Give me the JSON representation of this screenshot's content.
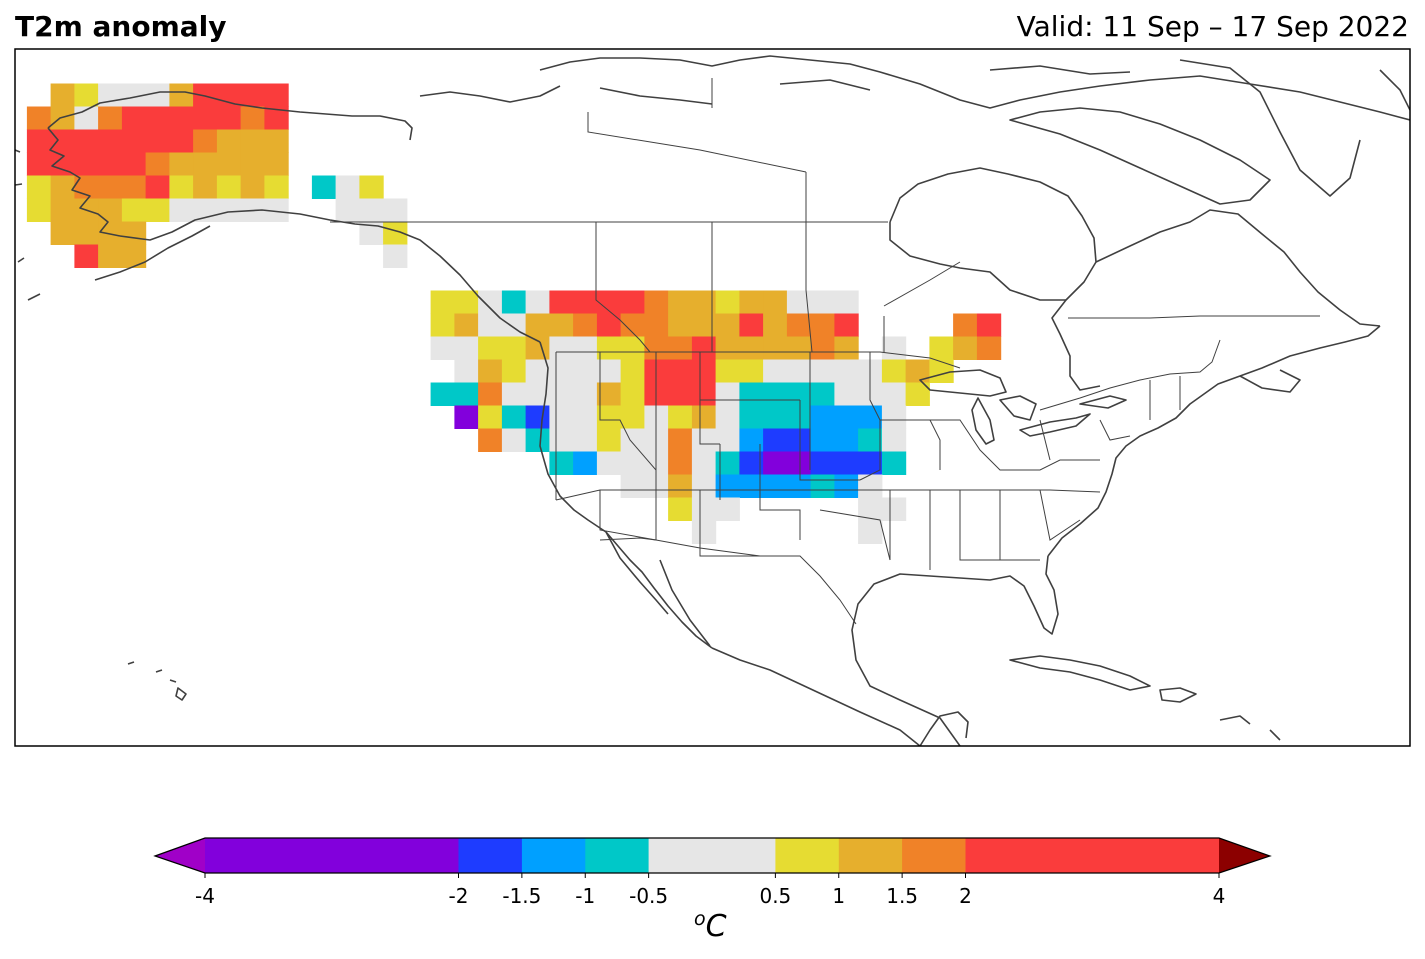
{
  "header": {
    "title": "T2m anomaly",
    "valid": "Valid: 11 Sep – 17 Sep 2022"
  },
  "legend": {
    "unit_prefix": "o",
    "unit": "C",
    "levels": [
      -4,
      -2,
      -1.5,
      -1,
      -0.5,
      0.5,
      1,
      1.5,
      2,
      4
    ],
    "labels": [
      "-4",
      "-2",
      "-1.5",
      "-1",
      "-0.5",
      "0.5",
      "1",
      "1.5",
      "2",
      "4"
    ],
    "colors": [
      "#8200dc",
      "#1e3cff",
      "#00a0ff",
      "#00c8c8",
      "#e6e6e6",
      "#e6dc32",
      "#e6af2d",
      "#f08228",
      "#fa3c3c"
    ],
    "under_color": "#a000c8",
    "over_color": "#8c0000"
  },
  "chart_data": {
    "type": "heatmap",
    "description_units": "temperature anomaly in degrees C, 2.5-degree grid cells",
    "cells": [
      {
        "lat": 70,
        "lon": -165,
        "v": 1.2
      },
      {
        "lat": 70,
        "lon": -162.5,
        "v": 0.7
      },
      {
        "lat": 70,
        "lon": -160,
        "v": 0
      },
      {
        "lat": 70,
        "lon": -157.5,
        "v": 0
      },
      {
        "lat": 70,
        "lon": -155,
        "v": 0
      },
      {
        "lat": 70,
        "lon": -152.5,
        "v": 1.2
      },
      {
        "lat": 70,
        "lon": -150,
        "v": 2.5
      },
      {
        "lat": 70,
        "lon": -147.5,
        "v": 2.5
      },
      {
        "lat": 70,
        "lon": -145,
        "v": 2.5
      },
      {
        "lat": 70,
        "lon": -142.5,
        "v": 2.5
      },
      {
        "lat": 67.5,
        "lon": -167.5,
        "v": 1.7
      },
      {
        "lat": 67.5,
        "lon": -165,
        "v": 1.2
      },
      {
        "lat": 67.5,
        "lon": -162.5,
        "v": 0
      },
      {
        "lat": 67.5,
        "lon": -160,
        "v": 1.7
      },
      {
        "lat": 67.5,
        "lon": -157.5,
        "v": 2.5
      },
      {
        "lat": 67.5,
        "lon": -155,
        "v": 2.5
      },
      {
        "lat": 67.5,
        "lon": -152.5,
        "v": 2.5
      },
      {
        "lat": 67.5,
        "lon": -150,
        "v": 2.5
      },
      {
        "lat": 67.5,
        "lon": -147.5,
        "v": 2.5
      },
      {
        "lat": 67.5,
        "lon": -145,
        "v": 1.7
      },
      {
        "lat": 67.5,
        "lon": -142.5,
        "v": 2.5
      },
      {
        "lat": 65,
        "lon": -167.5,
        "v": 2.5
      },
      {
        "lat": 65,
        "lon": -165,
        "v": 2.5
      },
      {
        "lat": 65,
        "lon": -162.5,
        "v": 2.5
      },
      {
        "lat": 65,
        "lon": -160,
        "v": 2.5
      },
      {
        "lat": 65,
        "lon": -157.5,
        "v": 2.5
      },
      {
        "lat": 65,
        "lon": -155,
        "v": 2.5
      },
      {
        "lat": 65,
        "lon": -152.5,
        "v": 2.5
      },
      {
        "lat": 65,
        "lon": -150,
        "v": 1.7
      },
      {
        "lat": 65,
        "lon": -147.5,
        "v": 1.2
      },
      {
        "lat": 65,
        "lon": -145,
        "v": 1.2
      },
      {
        "lat": 65,
        "lon": -142.5,
        "v": 1.2
      },
      {
        "lat": 62.5,
        "lon": -167.5,
        "v": 2.5
      },
      {
        "lat": 62.5,
        "lon": -165,
        "v": 2.5
      },
      {
        "lat": 62.5,
        "lon": -162.5,
        "v": 2.5
      },
      {
        "lat": 62.5,
        "lon": -160,
        "v": 2.5
      },
      {
        "lat": 62.5,
        "lon": -157.5,
        "v": 2.5
      },
      {
        "lat": 62.5,
        "lon": -155,
        "v": 1.7
      },
      {
        "lat": 62.5,
        "lon": -152.5,
        "v": 1.2
      },
      {
        "lat": 62.5,
        "lon": -150,
        "v": 1.2
      },
      {
        "lat": 62.5,
        "lon": -147.5,
        "v": 1.2
      },
      {
        "lat": 62.5,
        "lon": -145,
        "v": 1.2
      },
      {
        "lat": 62.5,
        "lon": -142.5,
        "v": 1.2
      },
      {
        "lat": 60,
        "lon": -167.5,
        "v": 0.7
      },
      {
        "lat": 60,
        "lon": -165,
        "v": 1.2
      },
      {
        "lat": 60,
        "lon": -162.5,
        "v": 1.7
      },
      {
        "lat": 60,
        "lon": -160,
        "v": 1.7
      },
      {
        "lat": 60,
        "lon": -157.5,
        "v": 1.7
      },
      {
        "lat": 60,
        "lon": -155,
        "v": 2.5
      },
      {
        "lat": 60,
        "lon": -152.5,
        "v": 0.7
      },
      {
        "lat": 60,
        "lon": -150,
        "v": 1.2
      },
      {
        "lat": 60,
        "lon": -147.5,
        "v": 0.7
      },
      {
        "lat": 60,
        "lon": -145,
        "v": 1.2
      },
      {
        "lat": 60,
        "lon": -142.5,
        "v": 0.7
      },
      {
        "lat": 57.5,
        "lon": -167.5,
        "v": 0.7
      },
      {
        "lat": 57.5,
        "lon": -165,
        "v": 1.2
      },
      {
        "lat": 57.5,
        "lon": -162.5,
        "v": 1.2
      },
      {
        "lat": 57.5,
        "lon": -160,
        "v": 1.2
      },
      {
        "lat": 57.5,
        "lon": -157.5,
        "v": 0.7
      },
      {
        "lat": 57.5,
        "lon": -155,
        "v": 0.7
      },
      {
        "lat": 57.5,
        "lon": -152.5,
        "v": 0
      },
      {
        "lat": 57.5,
        "lon": -150,
        "v": 0
      },
      {
        "lat": 57.5,
        "lon": -147.5,
        "v": 0
      },
      {
        "lat": 57.5,
        "lon": -145,
        "v": 0
      },
      {
        "lat": 57.5,
        "lon": -142.5,
        "v": 0
      },
      {
        "lat": 55,
        "lon": -165,
        "v": 1.2
      },
      {
        "lat": 55,
        "lon": -162.5,
        "v": 1.2
      },
      {
        "lat": 55,
        "lon": -160,
        "v": 1.2
      },
      {
        "lat": 55,
        "lon": -157.5,
        "v": 1.2
      },
      {
        "lat": 52.5,
        "lon": -162.5,
        "v": 2.5
      },
      {
        "lat": 52.5,
        "lon": -160,
        "v": 1.2
      },
      {
        "lat": 52.5,
        "lon": -157.5,
        "v": 1.2
      },
      {
        "lat": 60,
        "lon": -137.5,
        "v": -0.7
      },
      {
        "lat": 60,
        "lon": -135,
        "v": 0
      },
      {
        "lat": 60,
        "lon": -132.5,
        "v": 0.7
      },
      {
        "lat": 57.5,
        "lon": -135,
        "v": 0
      },
      {
        "lat": 57.5,
        "lon": -132.5,
        "v": 0
      },
      {
        "lat": 57.5,
        "lon": -130,
        "v": 0
      },
      {
        "lat": 55,
        "lon": -132.5,
        "v": 0
      },
      {
        "lat": 55,
        "lon": -130,
        "v": 0.7
      },
      {
        "lat": 52.5,
        "lon": -130,
        "v": 0
      },
      {
        "lat": 47.5,
        "lon": -125,
        "v": 0.7
      },
      {
        "lat": 47.5,
        "lon": -122.5,
        "v": 0.7
      },
      {
        "lat": 47.5,
        "lon": -120,
        "v": 0
      },
      {
        "lat": 47.5,
        "lon": -117.5,
        "v": -0.7
      },
      {
        "lat": 47.5,
        "lon": -115,
        "v": 0
      },
      {
        "lat": 47.5,
        "lon": -112.5,
        "v": 2.5
      },
      {
        "lat": 47.5,
        "lon": -110,
        "v": 2.5
      },
      {
        "lat": 47.5,
        "lon": -107.5,
        "v": 2.5
      },
      {
        "lat": 47.5,
        "lon": -105,
        "v": 2.5
      },
      {
        "lat": 47.5,
        "lon": -102.5,
        "v": 1.7
      },
      {
        "lat": 47.5,
        "lon": -100,
        "v": 1.2
      },
      {
        "lat": 47.5,
        "lon": -97.5,
        "v": 1.2
      },
      {
        "lat": 47.5,
        "lon": -95,
        "v": 0.7
      },
      {
        "lat": 47.5,
        "lon": -92.5,
        "v": 1.2
      },
      {
        "lat": 47.5,
        "lon": -90,
        "v": 1.2
      },
      {
        "lat": 47.5,
        "lon": -87.5,
        "v": 0
      },
      {
        "lat": 47.5,
        "lon": -85,
        "v": 0
      },
      {
        "lat": 47.5,
        "lon": -82.5,
        "v": 0
      },
      {
        "lat": 45,
        "lon": -125,
        "v": 0.7
      },
      {
        "lat": 45,
        "lon": -122.5,
        "v": 1.2
      },
      {
        "lat": 45,
        "lon": -120,
        "v": 0
      },
      {
        "lat": 45,
        "lon": -117.5,
        "v": 0
      },
      {
        "lat": 45,
        "lon": -115,
        "v": 1.2
      },
      {
        "lat": 45,
        "lon": -112.5,
        "v": 1.2
      },
      {
        "lat": 45,
        "lon": -110,
        "v": 1.7
      },
      {
        "lat": 45,
        "lon": -107.5,
        "v": 2.5
      },
      {
        "lat": 45,
        "lon": -105,
        "v": 1.7
      },
      {
        "lat": 45,
        "lon": -102.5,
        "v": 1.7
      },
      {
        "lat": 45,
        "lon": -100,
        "v": 1.2
      },
      {
        "lat": 45,
        "lon": -97.5,
        "v": 1.2
      },
      {
        "lat": 45,
        "lon": -95,
        "v": 1.2
      },
      {
        "lat": 45,
        "lon": -92.5,
        "v": 2.5
      },
      {
        "lat": 45,
        "lon": -90,
        "v": 1.2
      },
      {
        "lat": 45,
        "lon": -87.5,
        "v": 1.7
      },
      {
        "lat": 45,
        "lon": -85,
        "v": 1.7
      },
      {
        "lat": 45,
        "lon": -82.5,
        "v": 2.5
      },
      {
        "lat": 45,
        "lon": -70,
        "v": 1.7
      },
      {
        "lat": 45,
        "lon": -67.5,
        "v": 2.5
      },
      {
        "lat": 42.5,
        "lon": -125,
        "v": 0
      },
      {
        "lat": 42.5,
        "lon": -122.5,
        "v": 0
      },
      {
        "lat": 42.5,
        "lon": -120,
        "v": 0.7
      },
      {
        "lat": 42.5,
        "lon": -117.5,
        "v": 0.7
      },
      {
        "lat": 42.5,
        "lon": -115,
        "v": 1.2
      },
      {
        "lat": 42.5,
        "lon": -112.5,
        "v": 0
      },
      {
        "lat": 42.5,
        "lon": -110,
        "v": 0
      },
      {
        "lat": 42.5,
        "lon": -107.5,
        "v": 0.7
      },
      {
        "lat": 42.5,
        "lon": -105,
        "v": 0.7
      },
      {
        "lat": 42.5,
        "lon": -102.5,
        "v": 1.7
      },
      {
        "lat": 42.5,
        "lon": -100,
        "v": 1.7
      },
      {
        "lat": 42.5,
        "lon": -97.5,
        "v": 2.5
      },
      {
        "lat": 42.5,
        "lon": -95,
        "v": 1.2
      },
      {
        "lat": 42.5,
        "lon": -92.5,
        "v": 1.2
      },
      {
        "lat": 42.5,
        "lon": -90,
        "v": 1.2
      },
      {
        "lat": 42.5,
        "lon": -87.5,
        "v": 1.2
      },
      {
        "lat": 42.5,
        "lon": -85,
        "v": 1.7
      },
      {
        "lat": 42.5,
        "lon": -82.5,
        "v": 1.2
      },
      {
        "lat": 42.5,
        "lon": -77.5,
        "v": 0
      },
      {
        "lat": 42.5,
        "lon": -72.5,
        "v": 0.7
      },
      {
        "lat": 42.5,
        "lon": -70,
        "v": 1.2
      },
      {
        "lat": 42.5,
        "lon": -67.5,
        "v": 1.7
      },
      {
        "lat": 40,
        "lon": -122.5,
        "v": 0
      },
      {
        "lat": 40,
        "lon": -120,
        "v": 1.2
      },
      {
        "lat": 40,
        "lon": -117.5,
        "v": 0.7
      },
      {
        "lat": 40,
        "lon": -115,
        "v": 0
      },
      {
        "lat": 40,
        "lon": -112.5,
        "v": 0
      },
      {
        "lat": 40,
        "lon": -110,
        "v": 0
      },
      {
        "lat": 40,
        "lon": -107.5,
        "v": 0
      },
      {
        "lat": 40,
        "lon": -105,
        "v": 0.7
      },
      {
        "lat": 40,
        "lon": -102.5,
        "v": 2.5
      },
      {
        "lat": 40,
        "lon": -100,
        "v": 2.5
      },
      {
        "lat": 40,
        "lon": -97.5,
        "v": 2.5
      },
      {
        "lat": 40,
        "lon": -95,
        "v": 0.7
      },
      {
        "lat": 40,
        "lon": -92.5,
        "v": 0.7
      },
      {
        "lat": 40,
        "lon": -90,
        "v": 0
      },
      {
        "lat": 40,
        "lon": -87.5,
        "v": 0
      },
      {
        "lat": 40,
        "lon": -85,
        "v": 0
      },
      {
        "lat": 40,
        "lon": -82.5,
        "v": 0
      },
      {
        "lat": 40,
        "lon": -80,
        "v": 0
      },
      {
        "lat": 40,
        "lon": -77.5,
        "v": 0.7
      },
      {
        "lat": 40,
        "lon": -75,
        "v": 1.2
      },
      {
        "lat": 40,
        "lon": -72.5,
        "v": 0.7
      },
      {
        "lat": 37.5,
        "lon": -125,
        "v": -0.7
      },
      {
        "lat": 37.5,
        "lon": -122.5,
        "v": -0.7
      },
      {
        "lat": 37.5,
        "lon": -120,
        "v": 1.7
      },
      {
        "lat": 37.5,
        "lon": -117.5,
        "v": 0
      },
      {
        "lat": 37.5,
        "lon": -115,
        "v": 0
      },
      {
        "lat": 37.5,
        "lon": -112.5,
        "v": 0
      },
      {
        "lat": 37.5,
        "lon": -110,
        "v": 0
      },
      {
        "lat": 37.5,
        "lon": -107.5,
        "v": 1.2
      },
      {
        "lat": 37.5,
        "lon": -105,
        "v": 0.7
      },
      {
        "lat": 37.5,
        "lon": -102.5,
        "v": 2.5
      },
      {
        "lat": 37.5,
        "lon": -100,
        "v": 2.5
      },
      {
        "lat": 37.5,
        "lon": -97.5,
        "v": 2.5
      },
      {
        "lat": 37.5,
        "lon": -95,
        "v": 0
      },
      {
        "lat": 37.5,
        "lon": -92.5,
        "v": -0.7
      },
      {
        "lat": 37.5,
        "lon": -90,
        "v": -0.7
      },
      {
        "lat": 37.5,
        "lon": -87.5,
        "v": -0.7
      },
      {
        "lat": 37.5,
        "lon": -85,
        "v": -0.7
      },
      {
        "lat": 37.5,
        "lon": -82.5,
        "v": 0
      },
      {
        "lat": 37.5,
        "lon": -80,
        "v": 0
      },
      {
        "lat": 37.5,
        "lon": -77.5,
        "v": 0
      },
      {
        "lat": 37.5,
        "lon": -75,
        "v": 0.7
      },
      {
        "lat": 35,
        "lon": -122.5,
        "v": -2.5
      },
      {
        "lat": 35,
        "lon": -120,
        "v": 0.7
      },
      {
        "lat": 35,
        "lon": -117.5,
        "v": -0.7
      },
      {
        "lat": 35,
        "lon": -115,
        "v": -1.7
      },
      {
        "lat": 35,
        "lon": -112.5,
        "v": 0
      },
      {
        "lat": 35,
        "lon": -110,
        "v": 0
      },
      {
        "lat": 35,
        "lon": -107.5,
        "v": 0.7
      },
      {
        "lat": 35,
        "lon": -105,
        "v": 0.7
      },
      {
        "lat": 35,
        "lon": -102.5,
        "v": 0
      },
      {
        "lat": 35,
        "lon": -100,
        "v": 0.7
      },
      {
        "lat": 35,
        "lon": -97.5,
        "v": 1.2
      },
      {
        "lat": 35,
        "lon": -95,
        "v": 0
      },
      {
        "lat": 35,
        "lon": -92.5,
        "v": -0.7
      },
      {
        "lat": 35,
        "lon": -90,
        "v": -0.7
      },
      {
        "lat": 35,
        "lon": -87.5,
        "v": -0.7
      },
      {
        "lat": 35,
        "lon": -85,
        "v": -1.2
      },
      {
        "lat": 35,
        "lon": -82.5,
        "v": -1.2
      },
      {
        "lat": 35,
        "lon": -80,
        "v": -1.2
      },
      {
        "lat": 35,
        "lon": -77.5,
        "v": 0
      },
      {
        "lat": 32.5,
        "lon": -120,
        "v": 1.7
      },
      {
        "lat": 32.5,
        "lon": -117.5,
        "v": 0
      },
      {
        "lat": 32.5,
        "lon": -115,
        "v": -0.7
      },
      {
        "lat": 32.5,
        "lon": -112.5,
        "v": 0
      },
      {
        "lat": 32.5,
        "lon": -110,
        "v": 0
      },
      {
        "lat": 32.5,
        "lon": -107.5,
        "v": 0.7
      },
      {
        "lat": 32.5,
        "lon": -105,
        "v": 0
      },
      {
        "lat": 32.5,
        "lon": -102.5,
        "v": 0
      },
      {
        "lat": 32.5,
        "lon": -100,
        "v": 1.7
      },
      {
        "lat": 32.5,
        "lon": -97.5,
        "v": 0
      },
      {
        "lat": 32.5,
        "lon": -95,
        "v": 0
      },
      {
        "lat": 32.5,
        "lon": -92.5,
        "v": -1.2
      },
      {
        "lat": 32.5,
        "lon": -90,
        "v": -1.7
      },
      {
        "lat": 32.5,
        "lon": -87.5,
        "v": -1.7
      },
      {
        "lat": 32.5,
        "lon": -85,
        "v": -1.2
      },
      {
        "lat": 32.5,
        "lon": -82.5,
        "v": -1.2
      },
      {
        "lat": 32.5,
        "lon": -80,
        "v": -0.7
      },
      {
        "lat": 32.5,
        "lon": -77.5,
        "v": 0
      },
      {
        "lat": 30,
        "lon": -112.5,
        "v": -0.7
      },
      {
        "lat": 30,
        "lon": -110,
        "v": -1.2
      },
      {
        "lat": 30,
        "lon": -107.5,
        "v": 0
      },
      {
        "lat": 30,
        "lon": -105,
        "v": 0
      },
      {
        "lat": 30,
        "lon": -102.5,
        "v": 0
      },
      {
        "lat": 30,
        "lon": -100,
        "v": 1.7
      },
      {
        "lat": 30,
        "lon": -97.5,
        "v": 0
      },
      {
        "lat": 30,
        "lon": -95,
        "v": -0.7
      },
      {
        "lat": 30,
        "lon": -92.5,
        "v": -1.7
      },
      {
        "lat": 30,
        "lon": -90,
        "v": -2.5
      },
      {
        "lat": 30,
        "lon": -87.5,
        "v": -2.5
      },
      {
        "lat": 30,
        "lon": -85,
        "v": -1.7
      },
      {
        "lat": 30,
        "lon": -82.5,
        "v": -1.7
      },
      {
        "lat": 30,
        "lon": -80,
        "v": -1.7
      },
      {
        "lat": 30,
        "lon": -77.5,
        "v": -0.7
      },
      {
        "lat": 27.5,
        "lon": -105,
        "v": 0
      },
      {
        "lat": 27.5,
        "lon": -102.5,
        "v": 0
      },
      {
        "lat": 27.5,
        "lon": -100,
        "v": 1.2
      },
      {
        "lat": 27.5,
        "lon": -97.5,
        "v": 0
      },
      {
        "lat": 27.5,
        "lon": -95,
        "v": -1.2
      },
      {
        "lat": 27.5,
        "lon": -92.5,
        "v": -1.2
      },
      {
        "lat": 27.5,
        "lon": -90,
        "v": -1.2
      },
      {
        "lat": 27.5,
        "lon": -87.5,
        "v": -1.2
      },
      {
        "lat": 27.5,
        "lon": -85,
        "v": -0.7
      },
      {
        "lat": 27.5,
        "lon": -82.5,
        "v": -1.2
      },
      {
        "lat": 27.5,
        "lon": -80,
        "v": 0
      },
      {
        "lat": 25,
        "lon": -100,
        "v": 0.7
      },
      {
        "lat": 25,
        "lon": -97.5,
        "v": 0
      },
      {
        "lat": 25,
        "lon": -95,
        "v": 0
      },
      {
        "lat": 25,
        "lon": -80,
        "v": 0
      },
      {
        "lat": 25,
        "lon": -77.5,
        "v": 0
      },
      {
        "lat": 22.5,
        "lon": -97.5,
        "v": 0
      },
      {
        "lat": 22.5,
        "lon": -80,
        "v": 0
      }
    ]
  }
}
